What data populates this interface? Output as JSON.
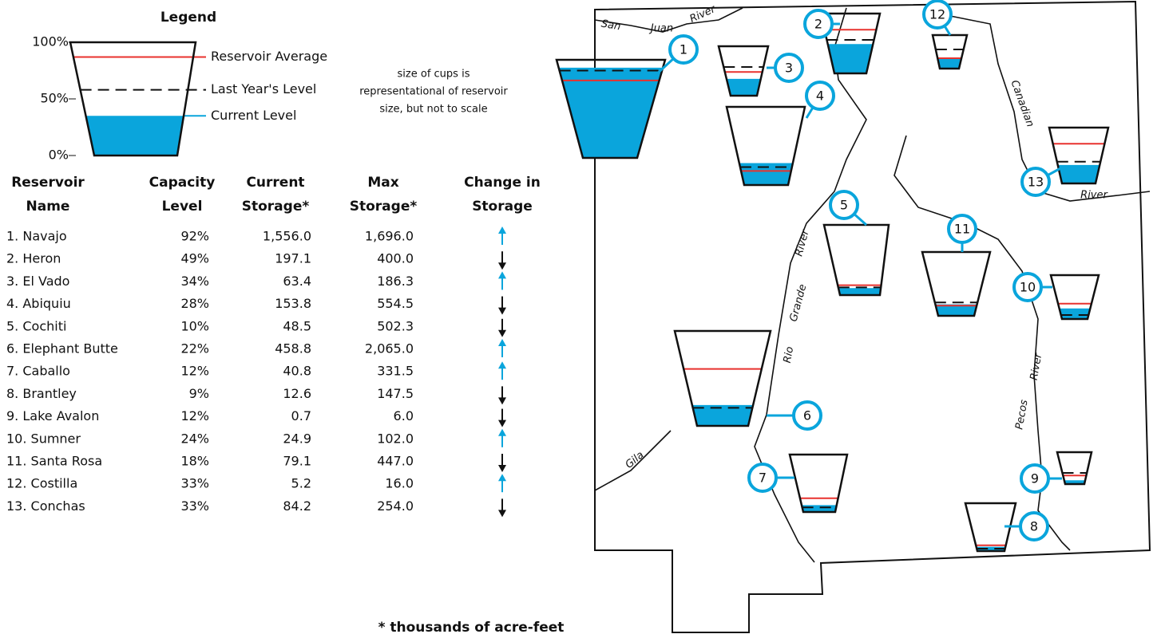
{
  "legend": {
    "title": "Legend",
    "ticks": [
      {
        "value": 100,
        "label": "100%"
      },
      {
        "value": 50,
        "label": "50%"
      },
      {
        "value": 0,
        "label": "0%"
      }
    ],
    "average": 87,
    "last_year": 58,
    "current": 35,
    "labels": [
      "Reservoir Average",
      "Last Year's Level",
      "Current Level"
    ]
  },
  "note": [
    "size of cups is",
    "representational of reservoir",
    "size, but not to scale"
  ],
  "table": {
    "headers": [
      [
        "Reservoir",
        "Name"
      ],
      [
        "Capacity",
        "Level"
      ],
      [
        "Current",
        "Storage*"
      ],
      [
        "Max",
        "Storage*"
      ],
      [
        "Change in",
        "Storage"
      ]
    ],
    "rows": [
      [
        "1. Navajo",
        "92%",
        "1,556.0",
        "1,696.0"
      ],
      [
        "2. Heron",
        "49%",
        "197.1",
        "400.0"
      ],
      [
        "3. El Vado",
        "34%",
        "63.4",
        "186.3"
      ],
      [
        "4. Abiquiu",
        "28%",
        "153.8",
        "554.5"
      ],
      [
        "5. Cochiti",
        "10%",
        "48.5",
        "502.3"
      ],
      [
        "6. Elephant Butte",
        "22%",
        "458.8",
        "2,065.0"
      ],
      [
        "7. Caballo",
        "12%",
        "40.8",
        "331.5"
      ],
      [
        "8. Brantley",
        "9%",
        "12.6",
        "147.5"
      ],
      [
        "9. Lake Avalon",
        "12%",
        "0.7",
        "6.0"
      ],
      [
        "10. Sumner",
        "24%",
        "24.9",
        "102.0"
      ],
      [
        "11. Santa Rosa",
        "18%",
        "79.1",
        "447.0"
      ],
      [
        "12. Costilla",
        "33%",
        "5.2",
        "16.0"
      ],
      [
        "13. Conchas",
        "33%",
        "84.2",
        "254.0"
      ]
    ],
    "changes": [
      "up",
      "down",
      "up",
      "down",
      "down",
      "up",
      "up",
      "down",
      "down",
      "up",
      "down",
      "up",
      "down"
    ]
  },
  "footnote": "* thousands of acre-feet",
  "map": {
    "river_labels": [
      "San",
      "Juan",
      "River",
      "Canadian",
      "River",
      "Rio",
      "Grande",
      "River",
      "Gila",
      "Pecos",
      "River"
    ],
    "reservoirs": [
      {
        "label": "1",
        "current": 92,
        "average": 79,
        "last_year": 89
      },
      {
        "label": "2",
        "current": 49,
        "average": 73,
        "last_year": 56
      },
      {
        "label": "3",
        "current": 34,
        "average": 48,
        "last_year": 58
      },
      {
        "label": "4",
        "current": 28,
        "average": 18,
        "last_year": 23
      },
      {
        "label": "5",
        "current": 10,
        "average": 14,
        "last_year": 11
      },
      {
        "label": "6",
        "current": 22,
        "average": 60,
        "last_year": 19
      },
      {
        "label": "7",
        "current": 12,
        "average": 24,
        "last_year": 8
      },
      {
        "label": "8",
        "current": 9,
        "average": 12,
        "last_year": 5
      },
      {
        "label": "9",
        "current": 12,
        "average": 27,
        "last_year": 35
      },
      {
        "label": "10",
        "current": 24,
        "average": 35,
        "last_year": 9
      },
      {
        "label": "11",
        "current": 18,
        "average": 16,
        "last_year": 21
      },
      {
        "label": "12",
        "current": 33,
        "average": 31,
        "last_year": 57
      },
      {
        "label": "13",
        "current": 33,
        "average": 71,
        "last_year": 39
      }
    ]
  }
}
